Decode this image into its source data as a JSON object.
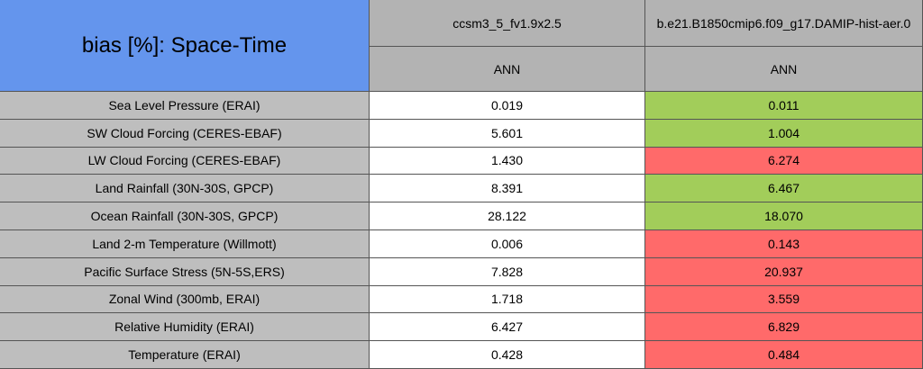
{
  "header": {
    "title": "bias [%]: Space-Time",
    "columns": [
      "ccsm3_5_fv1.9x2.5",
      "b.e21.B1850cmip6.f09_g17.DAMIP-hist-aer.0"
    ],
    "subheaders": [
      "ANN",
      "ANN"
    ]
  },
  "table": {
    "rows": [
      [
        "Sea Level Pressure (ERAI)",
        "0.019",
        "0.011"
      ],
      [
        "SW Cloud Forcing (CERES-EBAF)",
        "5.601",
        "1.004"
      ],
      [
        "LW Cloud Forcing (CERES-EBAF)",
        "1.430",
        "6.274"
      ],
      [
        "Land Rainfall (30N-30S, GPCP)",
        "8.391",
        "6.467"
      ],
      [
        "Ocean Rainfall (30N-30S, GPCP)",
        "28.122",
        "18.070"
      ],
      [
        "Land 2-m Temperature (Willmott)",
        "0.006",
        "0.143"
      ],
      [
        "Pacific Surface Stress (5N-5S,ERS)",
        "7.828",
        "20.937"
      ],
      [
        "Zonal Wind (300mb, ERAI)",
        "1.718",
        "3.559"
      ],
      [
        "Relative Humidity (ERAI)",
        "6.427",
        "6.829"
      ],
      [
        "Temperature (ERAI)",
        "0.428",
        "0.484"
      ]
    ],
    "cell_colors": [
      "#a2cd5a",
      "#a2cd5a",
      "#ff6a6a",
      "#a2cd5a",
      "#a2cd5a",
      "#ff6a6a",
      "#ff6a6a",
      "#ff6a6a",
      "#ff6a6a",
      "#ff6a6a"
    ]
  }
}
